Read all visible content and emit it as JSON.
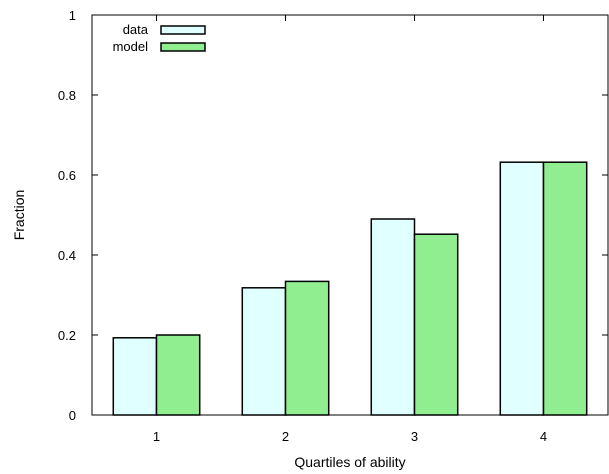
{
  "chart_data": {
    "type": "bar",
    "title": "",
    "xlabel": "Quartiles of ability",
    "ylabel": "Fraction",
    "categories": [
      "1",
      "2",
      "3",
      "4"
    ],
    "series": [
      {
        "name": "data",
        "values": [
          0.193,
          0.318,
          0.49,
          0.632
        ],
        "color": "#e0ffff"
      },
      {
        "name": "model",
        "values": [
          0.2,
          0.334,
          0.452,
          0.632
        ],
        "color": "#90ee90"
      }
    ],
    "ylim": [
      0,
      1
    ],
    "yticks": [
      0,
      0.2,
      0.4,
      0.6,
      0.8,
      1
    ],
    "ytick_labels": [
      "0",
      "0.2",
      "0.4",
      "0.6",
      "0.8",
      "1"
    ],
    "grid": false,
    "legend_position": "top-left"
  }
}
